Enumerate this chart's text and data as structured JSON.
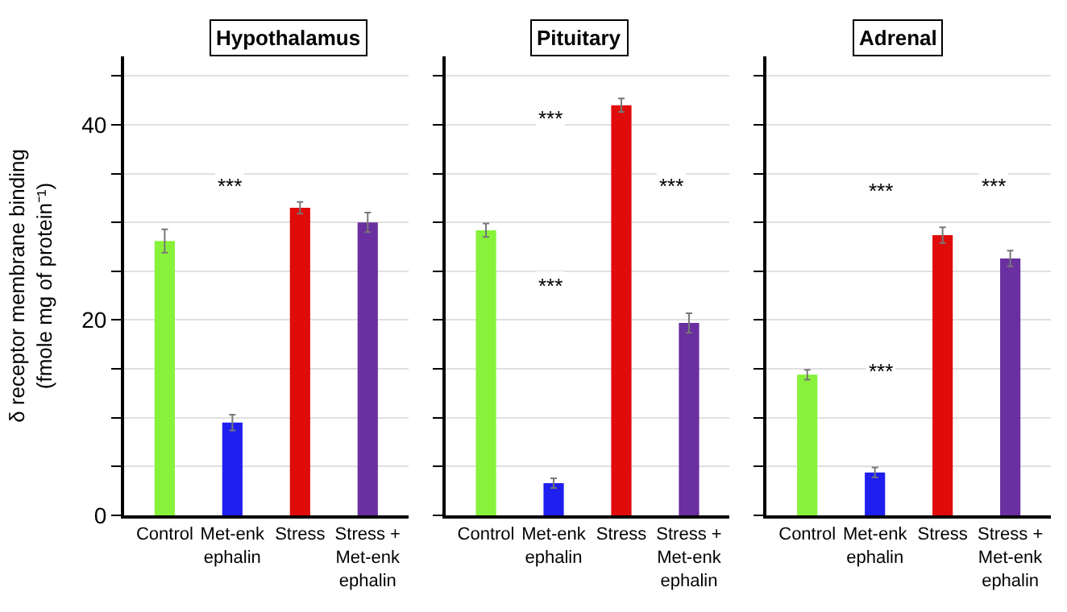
{
  "chart_data": [
    {
      "type": "bar",
      "title": "Hypothalamus",
      "ylabel": "δ receptor membrane binding\n(fmole mg of protein⁻¹)",
      "categories": [
        "Control",
        "Met-enk\nephalin",
        "Stress",
        "Stress +\nMet-enk\nephalin"
      ],
      "values": [
        28.1,
        9.5,
        31.5,
        30
      ],
      "errors": [
        1.2,
        0.8,
        0.6,
        1.0
      ],
      "colors": [
        "#88f23a",
        "#1f1ff0",
        "#e00b0b",
        "#6a2fa0"
      ],
      "ylim": [
        0,
        47
      ],
      "yticks": [
        0,
        {
          "value": 5,
          "label": null
        },
        {
          "value": 10,
          "label": null
        },
        {
          "value": 15,
          "label": null
        },
        20,
        {
          "value": 25,
          "label": null
        },
        {
          "value": 30,
          "label": null
        },
        {
          "value": 35,
          "label": null
        },
        40,
        {
          "value": 45,
          "label": null
        }
      ],
      "grid": "y",
      "annotations": [
        "***"
      ]
    },
    {
      "type": "bar",
      "title": "Pituitary",
      "categories": [
        "Control",
        "Met-enk\nephalin",
        "Stress",
        "Stress +\nMet-enk\nephalin"
      ],
      "values": [
        29.2,
        3.3,
        42,
        19.7
      ],
      "errors": [
        0.7,
        0.5,
        0.7,
        1.0
      ],
      "colors": [
        "#88f23a",
        "#1f1ff0",
        "#e00b0b",
        "#6a2fa0"
      ],
      "ylim": [
        0,
        47
      ],
      "yticks": [
        0,
        {
          "value": 5,
          "label": null
        },
        {
          "value": 10,
          "label": null
        },
        {
          "value": 15,
          "label": null
        },
        20,
        {
          "value": 25,
          "label": null
        },
        {
          "value": 30,
          "label": null
        },
        {
          "value": 35,
          "label": null
        },
        40,
        {
          "value": 45,
          "label": null
        }
      ],
      "grid": "y",
      "tick_labels": "x",
      "annotations": [
        "***",
        "***",
        "***"
      ]
    },
    {
      "type": "bar",
      "title": "Adrenal",
      "categories": [
        "Control",
        "Met-enk\nephalin",
        "Stress",
        "Stress +\nMet-enk\nephalin"
      ],
      "values": [
        14.4,
        4.4,
        28.7,
        26.3
      ],
      "errors": [
        0.5,
        0.5,
        0.8,
        0.8
      ],
      "colors": [
        "#88f23a",
        "#1f1ff0",
        "#e00b0b",
        "#6a2fa0"
      ],
      "ylim": [
        0,
        47
      ],
      "yticks": [
        0,
        {
          "value": 5,
          "label": null
        },
        {
          "value": 10,
          "label": null
        },
        {
          "value": 15,
          "label": null
        },
        20,
        {
          "value": 25,
          "label": null
        },
        {
          "value": 30,
          "label": null
        },
        {
          "value": 35,
          "label": null
        },
        40,
        {
          "value": 45,
          "label": null
        }
      ],
      "grid": "y",
      "tick_labels": "x",
      "annotations": [
        "***",
        "***",
        "***"
      ]
    }
  ]
}
